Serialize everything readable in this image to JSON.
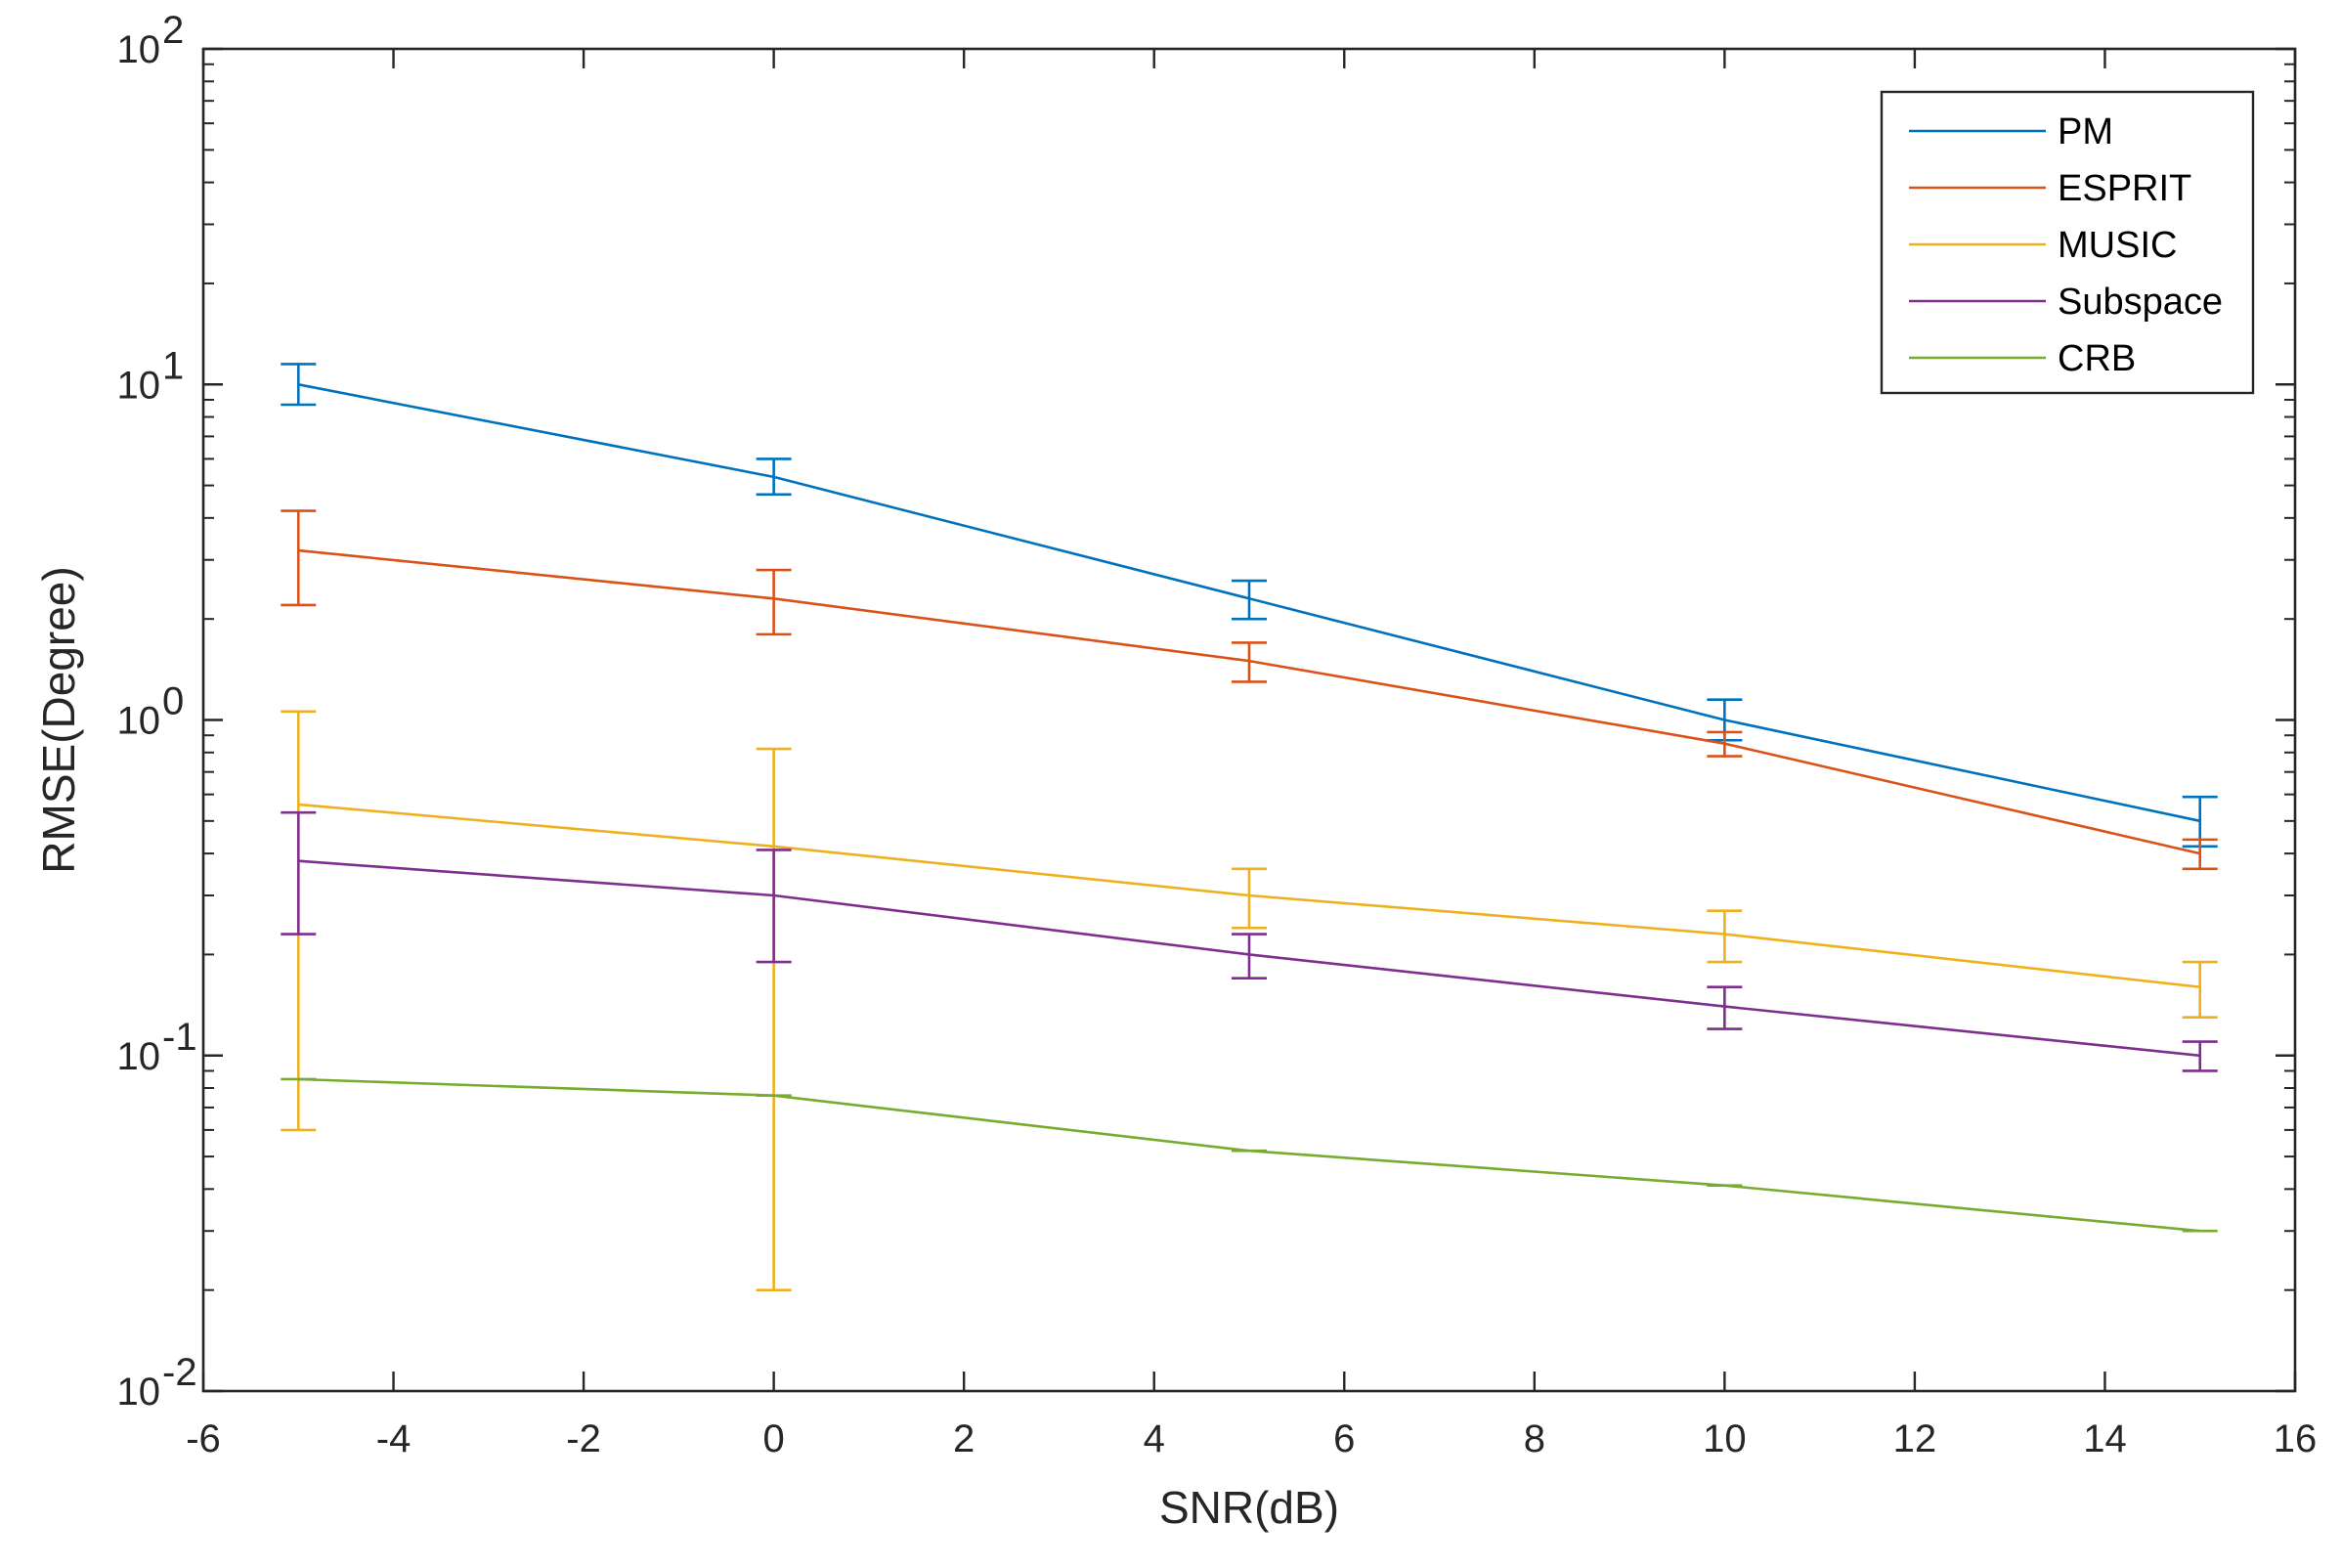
{
  "chart_data": {
    "type": "line",
    "xlabel": "SNR(dB)",
    "ylabel": "RMSE(Degree)",
    "xlim": [
      -6,
      16
    ],
    "ylim": [
      0.01,
      100
    ],
    "yscale": "log",
    "xticks": [
      -6,
      -4,
      -2,
      0,
      2,
      4,
      6,
      8,
      10,
      12,
      14,
      16
    ],
    "xtick_labels": [
      "-6",
      "-4",
      "-2",
      "0",
      "2",
      "4",
      "6",
      "8",
      "10",
      "12",
      "14",
      "16"
    ],
    "yticks": [
      0.01,
      0.1,
      1,
      10,
      100
    ],
    "ytick_labels": [
      {
        "base": "10",
        "exp": "-2"
      },
      {
        "base": "10",
        "exp": "-1"
      },
      {
        "base": "10",
        "exp": "0"
      },
      {
        "base": "10",
        "exp": "1"
      },
      {
        "base": "10",
        "exp": "2"
      }
    ],
    "grid": false,
    "legend_position": "top-right",
    "x": [
      -5,
      0,
      5,
      10,
      15
    ],
    "series": [
      {
        "name": "PM",
        "color": "#0072BD",
        "values": [
          10,
          5.3,
          2.3,
          1.0,
          0.5
        ],
        "err_low": [
          8.7,
          4.7,
          2.0,
          0.87,
          0.42
        ],
        "err_high": [
          11.5,
          6.0,
          2.6,
          1.15,
          0.59
        ]
      },
      {
        "name": "ESPRIT",
        "color": "#D95319",
        "values": [
          3.2,
          2.3,
          1.5,
          0.85,
          0.4
        ],
        "err_low": [
          2.2,
          1.8,
          1.3,
          0.78,
          0.36
        ],
        "err_high": [
          4.2,
          2.8,
          1.7,
          0.92,
          0.44
        ]
      },
      {
        "name": "MUSIC",
        "color": "#EDB120",
        "values": [
          0.56,
          0.42,
          0.3,
          0.23,
          0.16
        ],
        "err_low": [
          0.06,
          0.02,
          0.24,
          0.19,
          0.13
        ],
        "err_high": [
          1.06,
          0.82,
          0.36,
          0.27,
          0.19
        ]
      },
      {
        "name": "Subspace",
        "color": "#7E2F8E",
        "values": [
          0.38,
          0.3,
          0.2,
          0.14,
          0.1
        ],
        "err_low": [
          0.23,
          0.19,
          0.17,
          0.12,
          0.09
        ],
        "err_high": [
          0.53,
          0.41,
          0.23,
          0.16,
          0.11
        ]
      },
      {
        "name": "CRB",
        "color": "#77AC30",
        "values": [
          0.085,
          0.076,
          0.052,
          0.041,
          0.03
        ]
      }
    ]
  }
}
